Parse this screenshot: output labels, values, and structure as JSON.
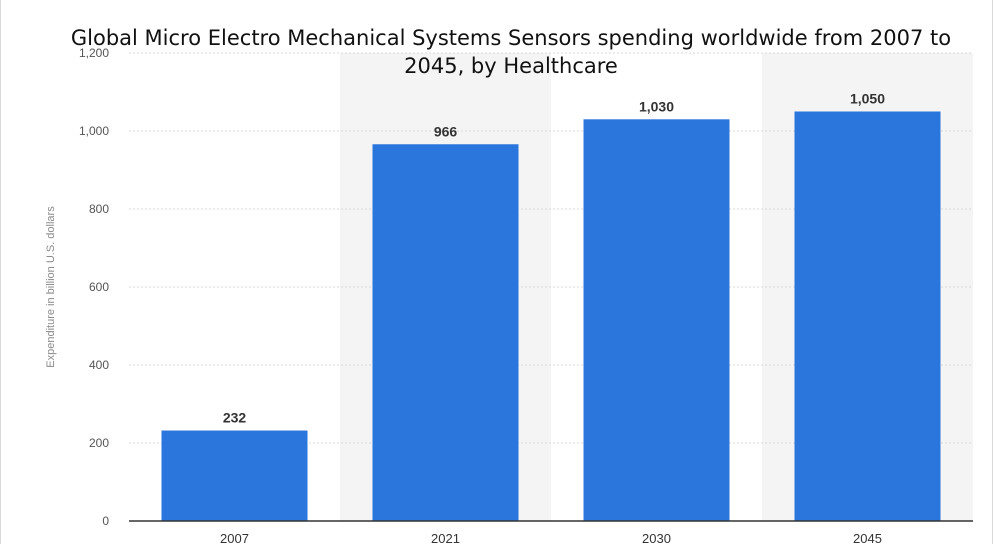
{
  "chart_data": {
    "type": "bar",
    "title": "Global Micro Electro Mechanical Systems Sensors spending worldwide from 2007 to 2045, by Healthcare",
    "xlabel": "",
    "ylabel": "Expenditure in billion U.S. dollars",
    "categories": [
      "2007",
      "2021",
      "2030",
      "2045"
    ],
    "values": [
      232,
      966,
      1030,
      1050
    ],
    "value_labels": [
      "232",
      "966",
      "1,030",
      "1,050"
    ],
    "ylim": [
      0,
      1200
    ],
    "yticks": [
      0,
      200,
      400,
      600,
      800,
      1000,
      1200
    ],
    "ytick_labels": [
      "0",
      "200",
      "400",
      "600",
      "800",
      "1,000",
      "1,200"
    ],
    "grid": true,
    "colors": {
      "bar": "#2a76dd",
      "alt_band": "#f4f4f4",
      "grid": "#d8d8d8",
      "axis": "#333333"
    }
  }
}
